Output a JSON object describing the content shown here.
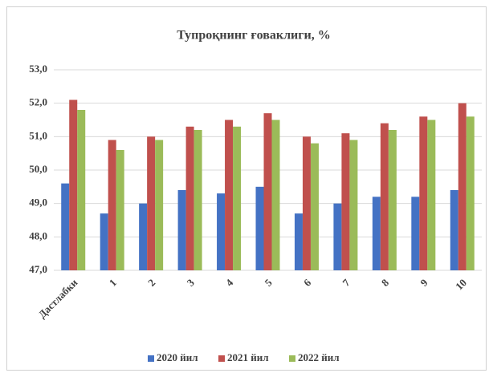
{
  "chart_data": {
    "type": "bar",
    "title": "Тупроқнинг ғоваклиги, %",
    "categories": [
      "Дастлабки",
      "1",
      "2",
      "3",
      "4",
      "5",
      "6",
      "7",
      "8",
      "9",
      "10"
    ],
    "series": [
      {
        "name": "2020 йил",
        "color": "#4472c4",
        "values": [
          49.6,
          48.7,
          49.0,
          49.4,
          49.3,
          49.5,
          48.7,
          49.0,
          49.2,
          49.2,
          49.4
        ]
      },
      {
        "name": "2021 йил",
        "color": "#c0504d",
        "values": [
          52.1,
          50.9,
          51.0,
          51.3,
          51.5,
          51.7,
          51.0,
          51.1,
          51.4,
          51.6,
          52.0
        ]
      },
      {
        "name": "2022 йил",
        "color": "#9bbb59",
        "values": [
          51.8,
          50.6,
          50.9,
          51.2,
          51.3,
          51.5,
          50.8,
          50.9,
          51.2,
          51.5,
          51.6
        ]
      }
    ],
    "ylim": [
      47,
      53
    ],
    "yticks": [
      {
        "value": 47,
        "label": "47,0"
      },
      {
        "value": 48,
        "label": "48,0"
      },
      {
        "value": 49,
        "label": "49,0"
      },
      {
        "value": 50,
        "label": "50,0"
      },
      {
        "value": 51,
        "label": "51,0"
      },
      {
        "value": 52,
        "label": "52,0"
      },
      {
        "value": 53,
        "label": "53,0"
      }
    ],
    "grid": true,
    "legend": "bottom"
  }
}
